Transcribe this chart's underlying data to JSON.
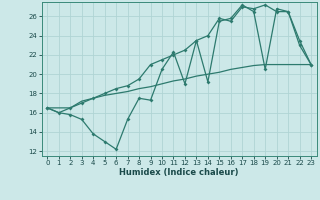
{
  "xlabel": "Humidex (Indice chaleur)",
  "background_color": "#cce8e8",
  "grid_color": "#b0d4d4",
  "line_color": "#2d7a6e",
  "xlim": [
    -0.5,
    23.5
  ],
  "ylim": [
    11.5,
    27.5
  ],
  "xticks": [
    0,
    1,
    2,
    3,
    4,
    5,
    6,
    7,
    8,
    9,
    10,
    11,
    12,
    13,
    14,
    15,
    16,
    17,
    18,
    19,
    20,
    21,
    22,
    23
  ],
  "yticks": [
    12,
    14,
    16,
    18,
    20,
    22,
    24,
    26
  ],
  "line1_x": [
    0,
    1,
    2,
    3,
    4,
    5,
    6,
    7,
    8,
    9,
    10,
    11,
    12,
    13,
    14,
    15,
    16,
    17,
    18,
    19,
    20,
    21,
    22,
    23
  ],
  "line1_y": [
    16.5,
    16.0,
    15.8,
    15.3,
    13.8,
    13.0,
    12.2,
    15.3,
    17.5,
    17.3,
    20.5,
    22.3,
    19.0,
    23.5,
    19.2,
    25.5,
    25.8,
    27.2,
    26.5,
    20.5,
    26.8,
    26.5,
    23.5,
    21.0
  ],
  "line2_x": [
    0,
    1,
    2,
    3,
    4,
    5,
    6,
    7,
    8,
    9,
    10,
    11,
    12,
    13,
    14,
    15,
    16,
    17,
    18,
    19,
    20,
    21,
    22,
    23
  ],
  "line2_y": [
    16.5,
    16.0,
    16.5,
    17.2,
    17.5,
    17.8,
    18.0,
    18.2,
    18.5,
    18.7,
    19.0,
    19.3,
    19.5,
    19.8,
    20.0,
    20.2,
    20.5,
    20.7,
    20.9,
    21.0,
    21.0,
    21.0,
    21.0,
    21.0
  ],
  "line3_x": [
    0,
    2,
    3,
    4,
    5,
    6,
    7,
    8,
    9,
    10,
    11,
    12,
    13,
    14,
    15,
    16,
    17,
    18,
    19,
    20,
    21,
    22,
    23
  ],
  "line3_y": [
    16.5,
    16.5,
    17.0,
    17.5,
    18.0,
    18.5,
    18.8,
    19.5,
    21.0,
    21.5,
    22.0,
    22.5,
    23.5,
    24.0,
    25.8,
    25.5,
    27.0,
    26.8,
    27.2,
    26.5,
    26.5,
    23.0,
    21.0
  ]
}
